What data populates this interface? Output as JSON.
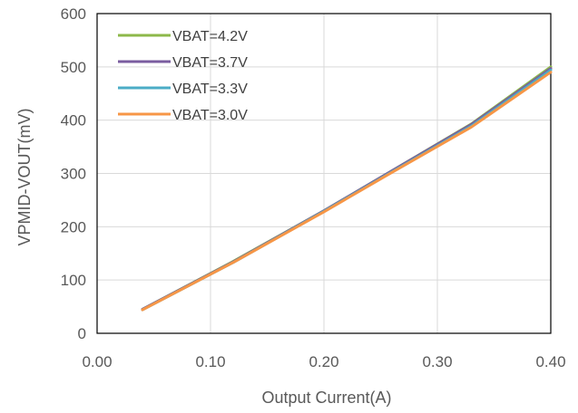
{
  "chart_data": {
    "type": "line",
    "title": "",
    "xlabel": "Output Current(A)",
    "ylabel": "VPMID-VOUT(mV)",
    "xlim": [
      0,
      0.4
    ],
    "ylim": [
      0,
      600
    ],
    "x_ticks": [
      "0.00",
      "0.10",
      "0.20",
      "0.30",
      "0.40"
    ],
    "y_ticks": [
      "0",
      "100",
      "200",
      "300",
      "400",
      "500",
      "600"
    ],
    "grid": true,
    "legend_position": "top-left",
    "series": [
      {
        "name": "VBAT=4.2V",
        "color": "#8DB84A",
        "x": [
          0.04,
          0.12,
          0.2,
          0.26,
          0.33,
          0.4
        ],
        "y": [
          45,
          135,
          230,
          305,
          393,
          500
        ]
      },
      {
        "name": "VBAT=3.7V",
        "color": "#7A5C9F",
        "x": [
          0.04,
          0.12,
          0.2,
          0.26,
          0.33,
          0.4
        ],
        "y": [
          45,
          134,
          230,
          305,
          392,
          497
        ]
      },
      {
        "name": "VBAT=3.3V",
        "color": "#4BACC6",
        "x": [
          0.04,
          0.12,
          0.2,
          0.26,
          0.33,
          0.4
        ],
        "y": [
          44,
          133,
          229,
          303,
          389,
          494
        ]
      },
      {
        "name": "VBAT=3.0V",
        "color": "#F79646",
        "x": [
          0.04,
          0.12,
          0.2,
          0.26,
          0.33,
          0.4
        ],
        "y": [
          44,
          133,
          228,
          302,
          387,
          490
        ]
      }
    ]
  }
}
